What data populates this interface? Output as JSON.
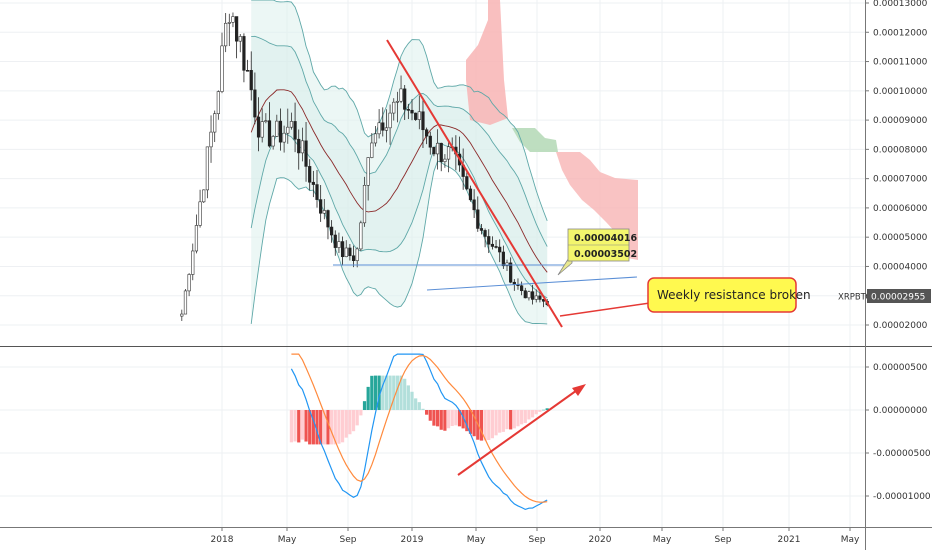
{
  "chart_data": {
    "type": "line",
    "title": "",
    "symbol": "XRPBTC",
    "last_price": "0.00002955",
    "price_axis_ticks": [
      "0.00013000",
      "0.00012000",
      "0.00011000",
      "0.00010000",
      "0.00009000",
      "0.00008000",
      "0.00007000",
      "0.00006000",
      "0.00005000",
      "0.00004000",
      "0.00003000",
      "0.00002000"
    ],
    "macd_axis_ticks": [
      "0.00000500",
      "0.00000000",
      "-0.00000500",
      "-0.00001000"
    ],
    "time_axis_labels": [
      "2018",
      "May",
      "Sep",
      "2019",
      "May",
      "Sep",
      "2020",
      "May",
      "Sep",
      "2021",
      "May"
    ],
    "price_labels": [
      "0.00004016",
      "0.00003502"
    ],
    "annotation": "Weekly resistance broken",
    "colors": {
      "up": "#26a69a",
      "down": "#ef5350",
      "bollinger": "#5fa8a8",
      "basis": "#8b2a2a",
      "trend": "#e53935",
      "cloud_bear": "#f8b4b4",
      "cloud_bull": "#b7dab9",
      "macd_line": "#2196f3",
      "signal_line": "#ff8a3d",
      "blue_line": "#5b8fd6"
    },
    "price_series": [
      {
        "t": "2017-10",
        "close": 2.35e-05
      },
      {
        "t": "2017-12",
        "close": 9e-05
      },
      {
        "t": "2018-01",
        "close": 0.00013
      },
      {
        "t": "2018-02",
        "close": 0.00011
      },
      {
        "t": "2018-03",
        "close": 8.5e-05
      },
      {
        "t": "2018-04",
        "close": 8.5e-05
      },
      {
        "t": "2018-05",
        "close": 8.8e-05
      },
      {
        "t": "2018-06",
        "close": 7.2e-05
      },
      {
        "t": "2018-07",
        "close": 5.7e-05
      },
      {
        "t": "2018-08",
        "close": 4.5e-05
      },
      {
        "t": "2018-09",
        "close": 4.3e-05
      },
      {
        "t": "2018-10",
        "close": 8.7e-05
      },
      {
        "t": "2018-11",
        "close": 9.3e-05
      },
      {
        "t": "2018-12",
        "close": 9.6e-05
      },
      {
        "t": "2019-01",
        "close": 8.9e-05
      },
      {
        "t": "2019-02",
        "close": 8e-05
      },
      {
        "t": "2019-03",
        "close": 7.8e-05
      },
      {
        "t": "2019-04",
        "close": 6.4e-05
      },
      {
        "t": "2019-05",
        "close": 5.2e-05
      },
      {
        "t": "2019-06",
        "close": 4.4e-05
      },
      {
        "t": "2019-07",
        "close": 3.4e-05
      },
      {
        "t": "2019-08",
        "close": 2.9e-05
      },
      {
        "t": "2019-09",
        "close": 2.8e-05
      },
      {
        "t": "2019-09-20",
        "close": 2.955e-05
      }
    ]
  }
}
